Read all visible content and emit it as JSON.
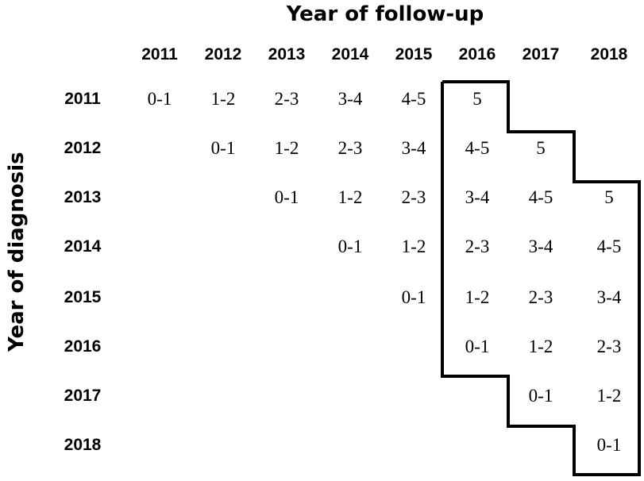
{
  "diagram": {
    "title": "Year of follow-up",
    "y_axis_label": "Year of diagnosis",
    "follow_up_years": [
      "2011",
      "2012",
      "2013",
      "2014",
      "2015",
      "2016",
      "2017",
      "2018"
    ],
    "diagnosis_years": [
      "2011",
      "2012",
      "2013",
      "2014",
      "2015",
      "2016",
      "2017",
      "2018"
    ],
    "rows": [
      {
        "diagnosis": "2011",
        "cells": [
          "0-1",
          "1-2",
          "2-3",
          "3-4",
          "4-5",
          "5",
          "",
          ""
        ]
      },
      {
        "diagnosis": "2012",
        "cells": [
          "",
          "0-1",
          "1-2",
          "2-3",
          "3-4",
          "4-5",
          "5",
          ""
        ]
      },
      {
        "diagnosis": "2013",
        "cells": [
          "",
          "",
          "0-1",
          "1-2",
          "2-3",
          "3-4",
          "4-5",
          "5"
        ]
      },
      {
        "diagnosis": "2014",
        "cells": [
          "",
          "",
          "",
          "0-1",
          "1-2",
          "2-3",
          "3-4",
          "4-5"
        ]
      },
      {
        "diagnosis": "2015",
        "cells": [
          "",
          "",
          "",
          "",
          "0-1",
          "1-2",
          "2-3",
          "3-4"
        ]
      },
      {
        "diagnosis": "2016",
        "cells": [
          "",
          "",
          "",
          "",
          "",
          "0-1",
          "1-2",
          "2-3"
        ]
      },
      {
        "diagnosis": "2017",
        "cells": [
          "",
          "",
          "",
          "",
          "",
          "",
          "0-1",
          "1-2"
        ]
      },
      {
        "diagnosis": "2018",
        "cells": [
          "",
          "",
          "",
          "",
          "",
          "",
          "",
          "0-1"
        ]
      }
    ],
    "highlighted_period": {
      "from_year": "2016",
      "to_year": "2018"
    }
  }
}
